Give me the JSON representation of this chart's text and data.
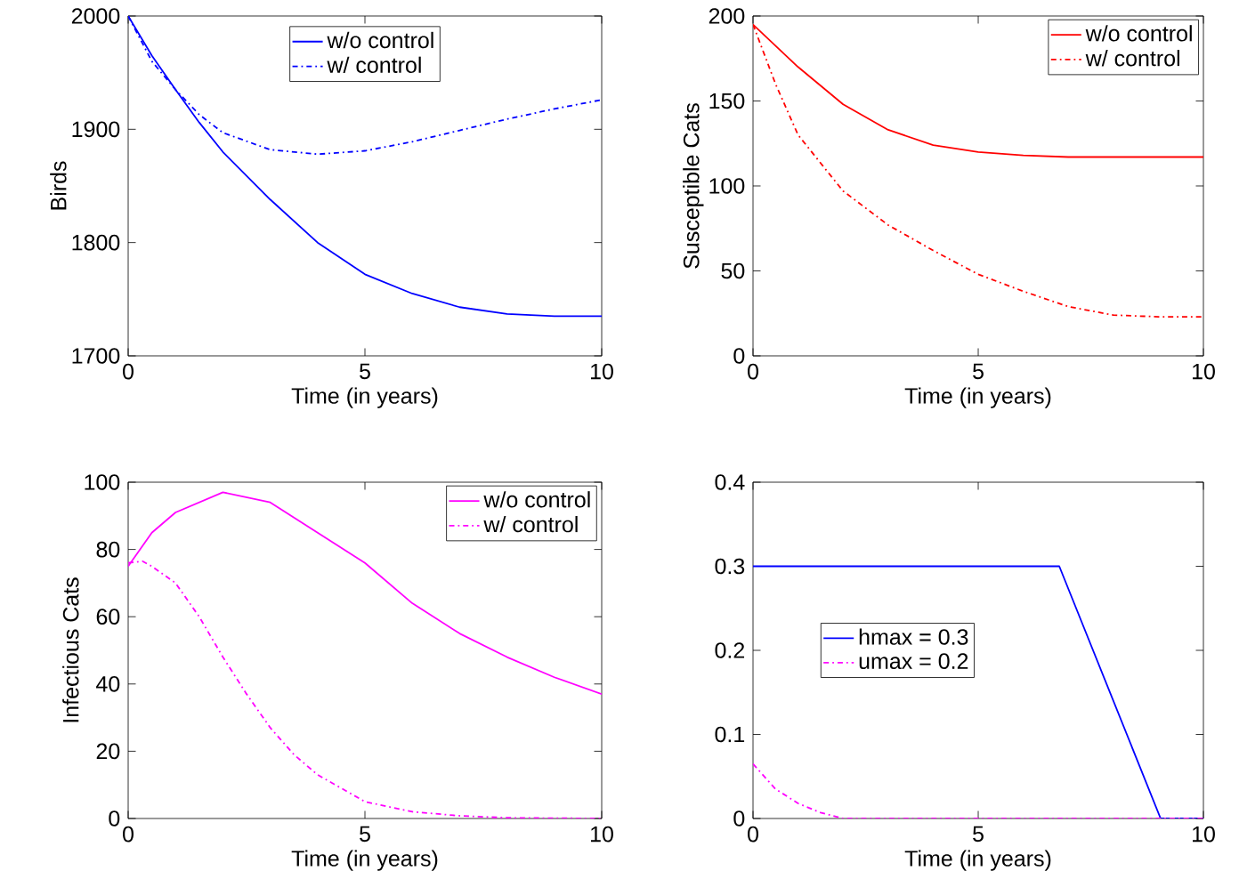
{
  "chart_data": [
    {
      "type": "line",
      "xlabel": "Time (in years)",
      "ylabel": "Birds",
      "xlim": [
        0,
        10
      ],
      "ylim": [
        1700,
        2000
      ],
      "xticks": [
        0,
        5,
        10
      ],
      "yticks": [
        1700,
        1800,
        1900,
        2000
      ],
      "legend": "top",
      "grid": false,
      "series": [
        {
          "name": "w/o control",
          "color": "#0000ff",
          "line_style": "solid",
          "x": [
            0,
            0.5,
            1,
            1.5,
            2,
            3,
            4,
            5,
            6,
            7,
            8,
            9,
            10
          ],
          "values": [
            2000,
            1965,
            1935,
            1906,
            1880,
            1838,
            1800,
            1772,
            1755,
            1743,
            1737,
            1735,
            1735
          ]
        },
        {
          "name": "w/ control",
          "color": "#0000ff",
          "line_style": "dashdot",
          "x": [
            0,
            0.5,
            1,
            1.5,
            2,
            3,
            4,
            5,
            6,
            7,
            8,
            9,
            10
          ],
          "values": [
            2000,
            1960,
            1935,
            1913,
            1897,
            1882,
            1878,
            1881,
            1889,
            1899,
            1909,
            1918,
            1926
          ]
        }
      ]
    },
    {
      "type": "line",
      "xlabel": "Time (in years)",
      "ylabel": "Susceptible Cats",
      "xlim": [
        0,
        10
      ],
      "ylim": [
        0,
        200
      ],
      "xticks": [
        0,
        5,
        10
      ],
      "yticks": [
        0,
        50,
        100,
        150,
        200
      ],
      "legend": "top right",
      "grid": false,
      "series": [
        {
          "name": "w/o control",
          "color": "#ff0000",
          "line_style": "solid",
          "x": [
            0,
            1,
            2,
            3,
            4,
            5,
            6,
            7,
            8,
            10
          ],
          "values": [
            195,
            170,
            148,
            133,
            124,
            120,
            118,
            117,
            117,
            117
          ]
        },
        {
          "name": "w/ control",
          "color": "#ff0000",
          "line_style": "dashdot",
          "x": [
            0,
            0.5,
            1,
            2,
            3,
            4,
            5,
            6,
            7,
            8,
            9,
            10
          ],
          "values": [
            195,
            160,
            130,
            97,
            77,
            62,
            48,
            38,
            29,
            24,
            23,
            23
          ]
        }
      ]
    },
    {
      "type": "line",
      "xlabel": "Time (in years)",
      "ylabel": "Infectious Cats",
      "xlim": [
        0,
        10
      ],
      "ylim": [
        0,
        100
      ],
      "xticks": [
        0,
        5,
        10
      ],
      "yticks": [
        0,
        20,
        40,
        60,
        80,
        100
      ],
      "legend": "top right",
      "grid": false,
      "series": [
        {
          "name": "w/o control",
          "color": "#ff00ff",
          "line_style": "solid",
          "x": [
            0,
            0.5,
            1,
            2,
            3,
            4,
            5,
            6,
            7,
            8,
            9,
            10
          ],
          "values": [
            75,
            85,
            91,
            97,
            94,
            85,
            76,
            64,
            55,
            48,
            42,
            37
          ]
        },
        {
          "name": "w/ control",
          "color": "#ff00ff",
          "line_style": "dashdot",
          "x": [
            0,
            0.3,
            0.5,
            1,
            1.5,
            2,
            2.5,
            3,
            3.5,
            4,
            5,
            6,
            7,
            8,
            10
          ],
          "values": [
            76,
            76.5,
            75,
            70,
            60,
            48,
            37,
            27,
            19,
            13,
            5,
            2,
            0.8,
            0.2,
            0
          ]
        }
      ]
    },
    {
      "type": "line",
      "xlabel": "Time (in years)",
      "xlim": [
        0,
        10
      ],
      "ylim": [
        0,
        0.4
      ],
      "xticks": [
        0,
        5,
        10
      ],
      "yticks": [
        0,
        0.1,
        0.2,
        0.3,
        0.4
      ],
      "legend": "left",
      "grid": false,
      "series": [
        {
          "name": "hmax = 0.3",
          "color": "#0000ff",
          "line_style": "solid",
          "x": [
            0,
            6.8,
            9.05,
            10
          ],
          "values": [
            0.3,
            0.3,
            0,
            0
          ]
        },
        {
          "name": "umax = 0.2",
          "color": "#ff00ff",
          "line_style": "dashdot",
          "x": [
            0,
            0.5,
            1,
            1.5,
            2,
            10
          ],
          "values": [
            0.065,
            0.035,
            0.018,
            0.007,
            0,
            0
          ]
        }
      ]
    }
  ]
}
